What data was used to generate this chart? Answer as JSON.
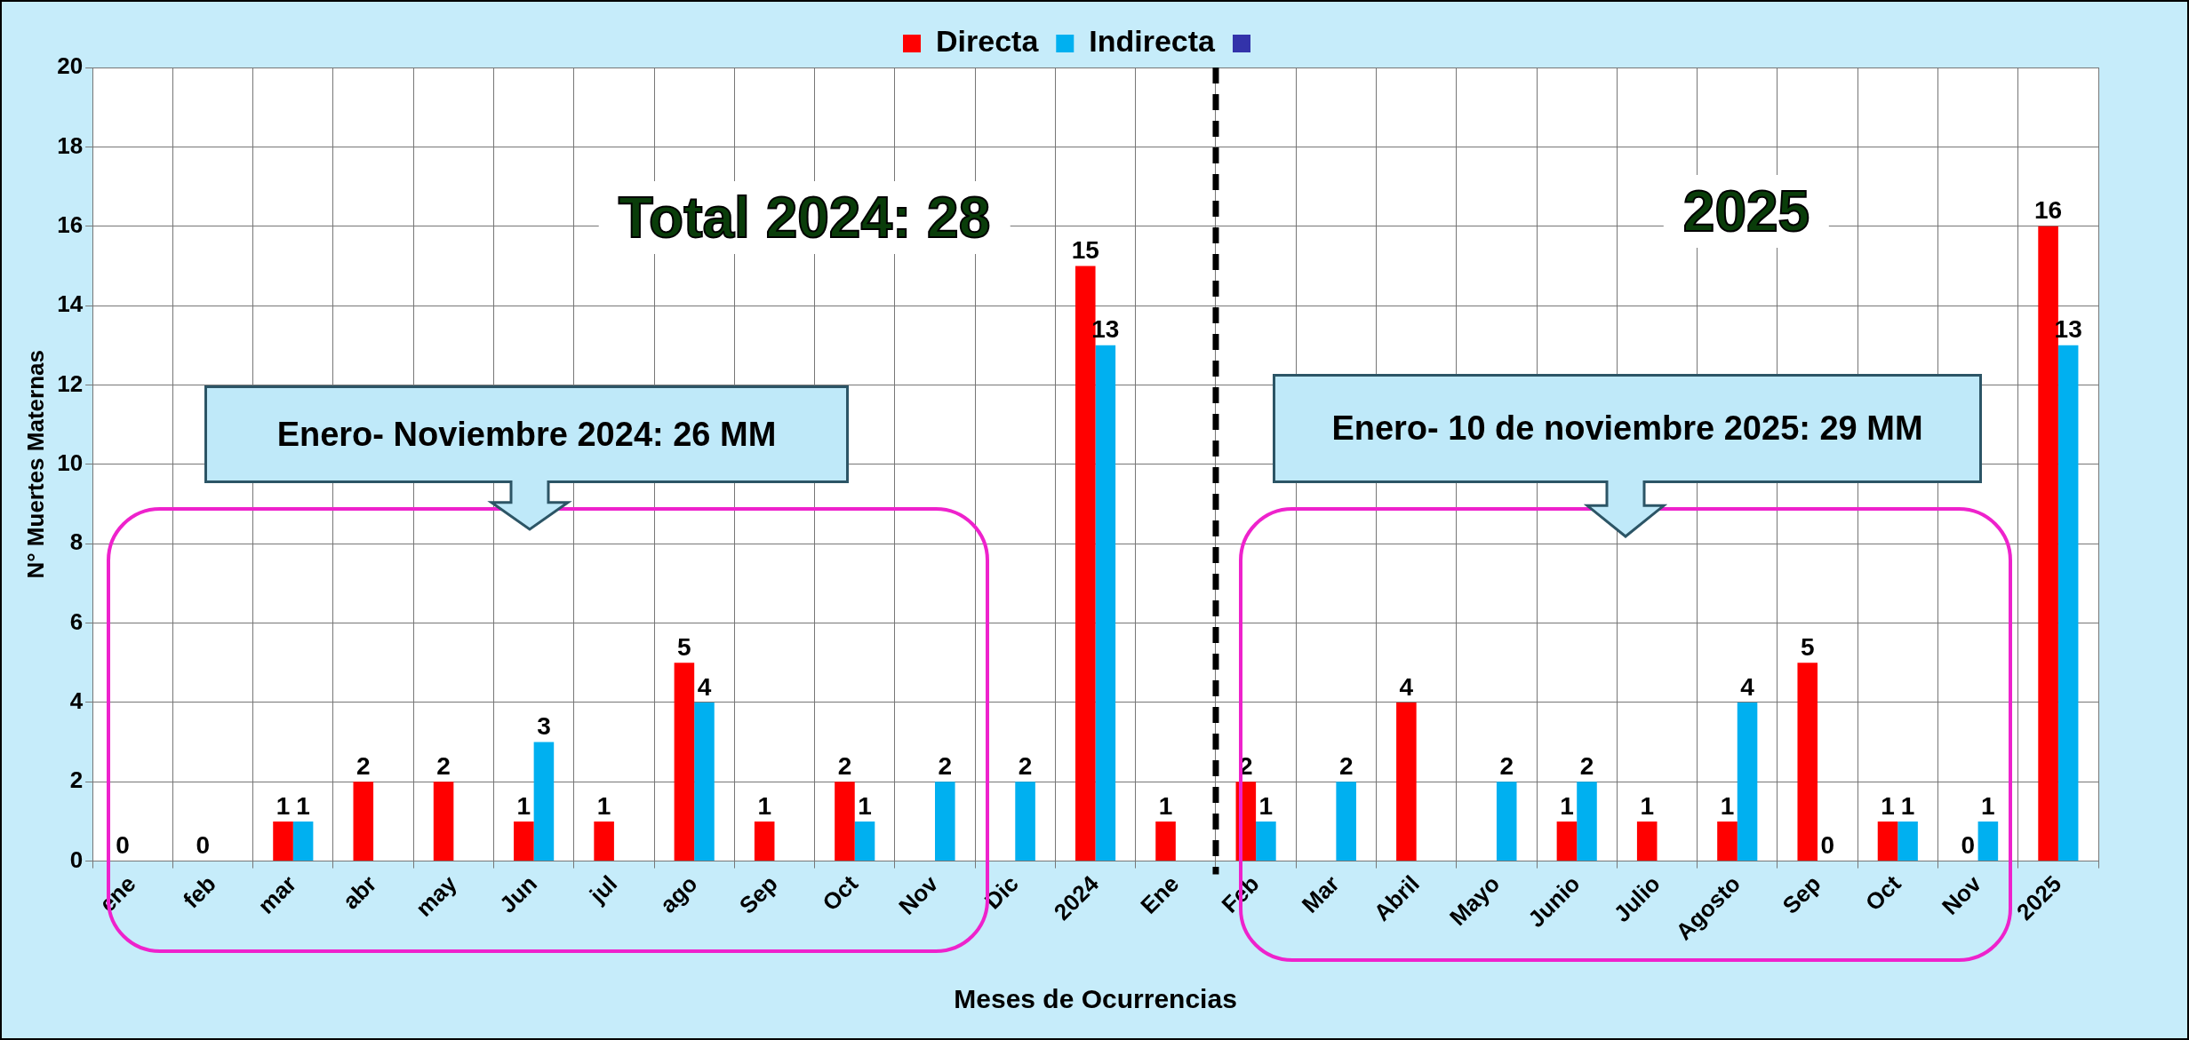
{
  "chart_data": {
    "type": "bar",
    "xlabel": "Meses de Ocurrencias",
    "ylabel": "N° Muertes Maternas",
    "categories": [
      "ene",
      "feb",
      "mar",
      "abr",
      "may",
      "Jun",
      "jul",
      "ago",
      "Sep",
      "Oct",
      "Nov",
      "Dic",
      "2024",
      "Ene",
      "Feb",
      "Mar",
      "Abril",
      "Mayo",
      "Junio",
      "Julio",
      "Agosto",
      "Sep",
      "Oct",
      "Nov",
      "2025"
    ],
    "series": [
      {
        "name": "Directa",
        "color": "#ff0000",
        "values": [
          0,
          0,
          1,
          2,
          2,
          1,
          1,
          5,
          1,
          2,
          null,
          null,
          15,
          1,
          2,
          null,
          4,
          null,
          1,
          1,
          1,
          5,
          1,
          0,
          16
        ]
      },
      {
        "name": "Indirecta",
        "color": "#00b0f0",
        "values": [
          null,
          null,
          1,
          null,
          null,
          3,
          null,
          4,
          null,
          1,
          2,
          2,
          13,
          null,
          1,
          2,
          null,
          2,
          2,
          null,
          4,
          0,
          1,
          1,
          13
        ]
      }
    ],
    "ylim": [
      0,
      20
    ],
    "yticks": [
      0,
      2,
      4,
      6,
      8,
      10,
      12,
      14,
      16,
      18,
      20
    ],
    "grid": true,
    "legend": "top",
    "data_labels": true,
    "ref_lines": [
      {
        "axis": "x",
        "value": "Ene",
        "line_style": "dashed",
        "color": "#000000"
      }
    ],
    "annotations": [
      "Total 2024: 28",
      "2025",
      "Enero- Noviembre 2024: 26 MM",
      "Enero- 10 de noviembre 2025: 29 MM"
    ]
  }
}
